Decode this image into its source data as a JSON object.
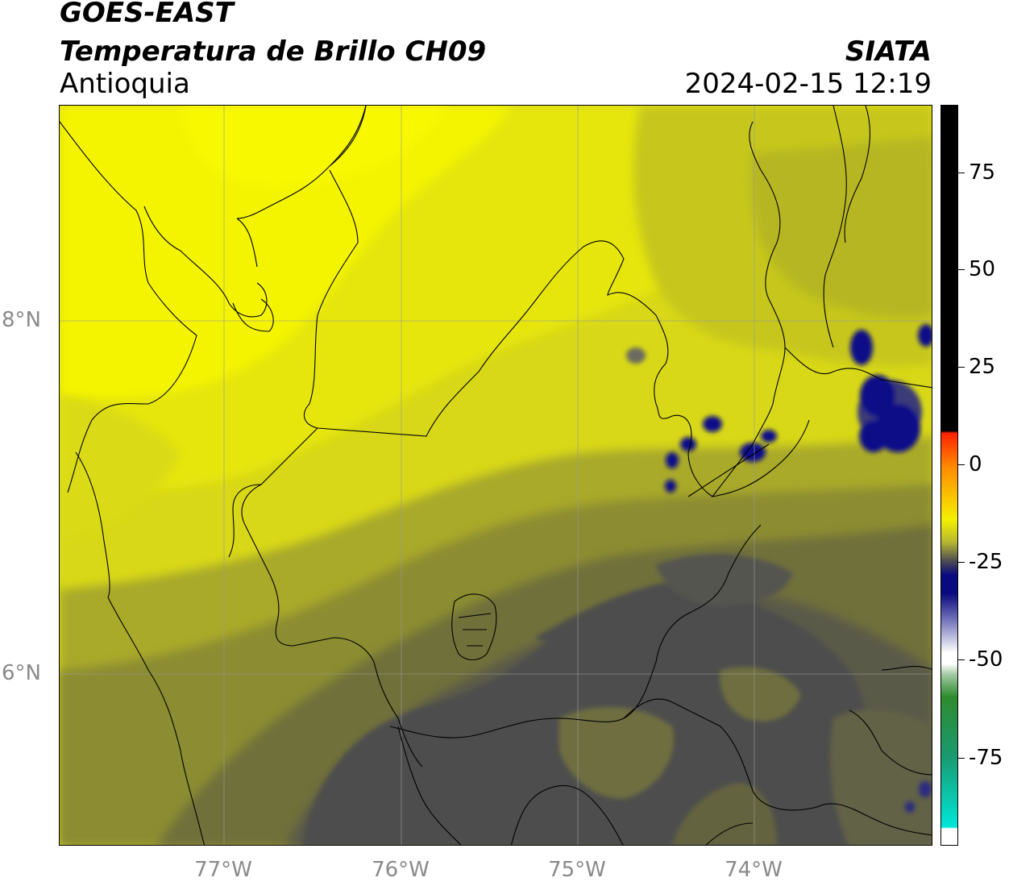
{
  "header": {
    "satellite": "GOES-EAST",
    "product": "Temperatura de Brillo CH09",
    "region": "Antioquia",
    "organization": "SIATA",
    "datetime": "2024-02-15 12:19"
  },
  "axes": {
    "longitude_ticks": [
      "77°W",
      "76°W",
      "75°W",
      "74°W"
    ],
    "latitude_ticks": [
      "8°N",
      "6°N"
    ]
  },
  "colorbar": {
    "tick_labels": [
      "75",
      "50",
      "25",
      "0",
      "-25",
      "-50",
      "-75"
    ],
    "colors": {
      "black": "#000000",
      "red": "#ff2200",
      "orange": "#ff8c00",
      "yellow": "#f4f000",
      "olive": "#b8b830",
      "gray": "#505050",
      "navy": "#0a0a80",
      "white": "#ffffff",
      "green": "#2e8b2e",
      "cyan": "#00e6d8"
    }
  },
  "map_colors": {
    "bright_yellow": "#f2f200",
    "yellow": "#e0e010",
    "light_olive": "#c8c81e",
    "olive": "#a8a826",
    "dark_olive": "#7e7e36",
    "gray_olive": "#686840",
    "dark_gray": "#4e4e4e",
    "cloud_blue": "#0a0a88"
  }
}
